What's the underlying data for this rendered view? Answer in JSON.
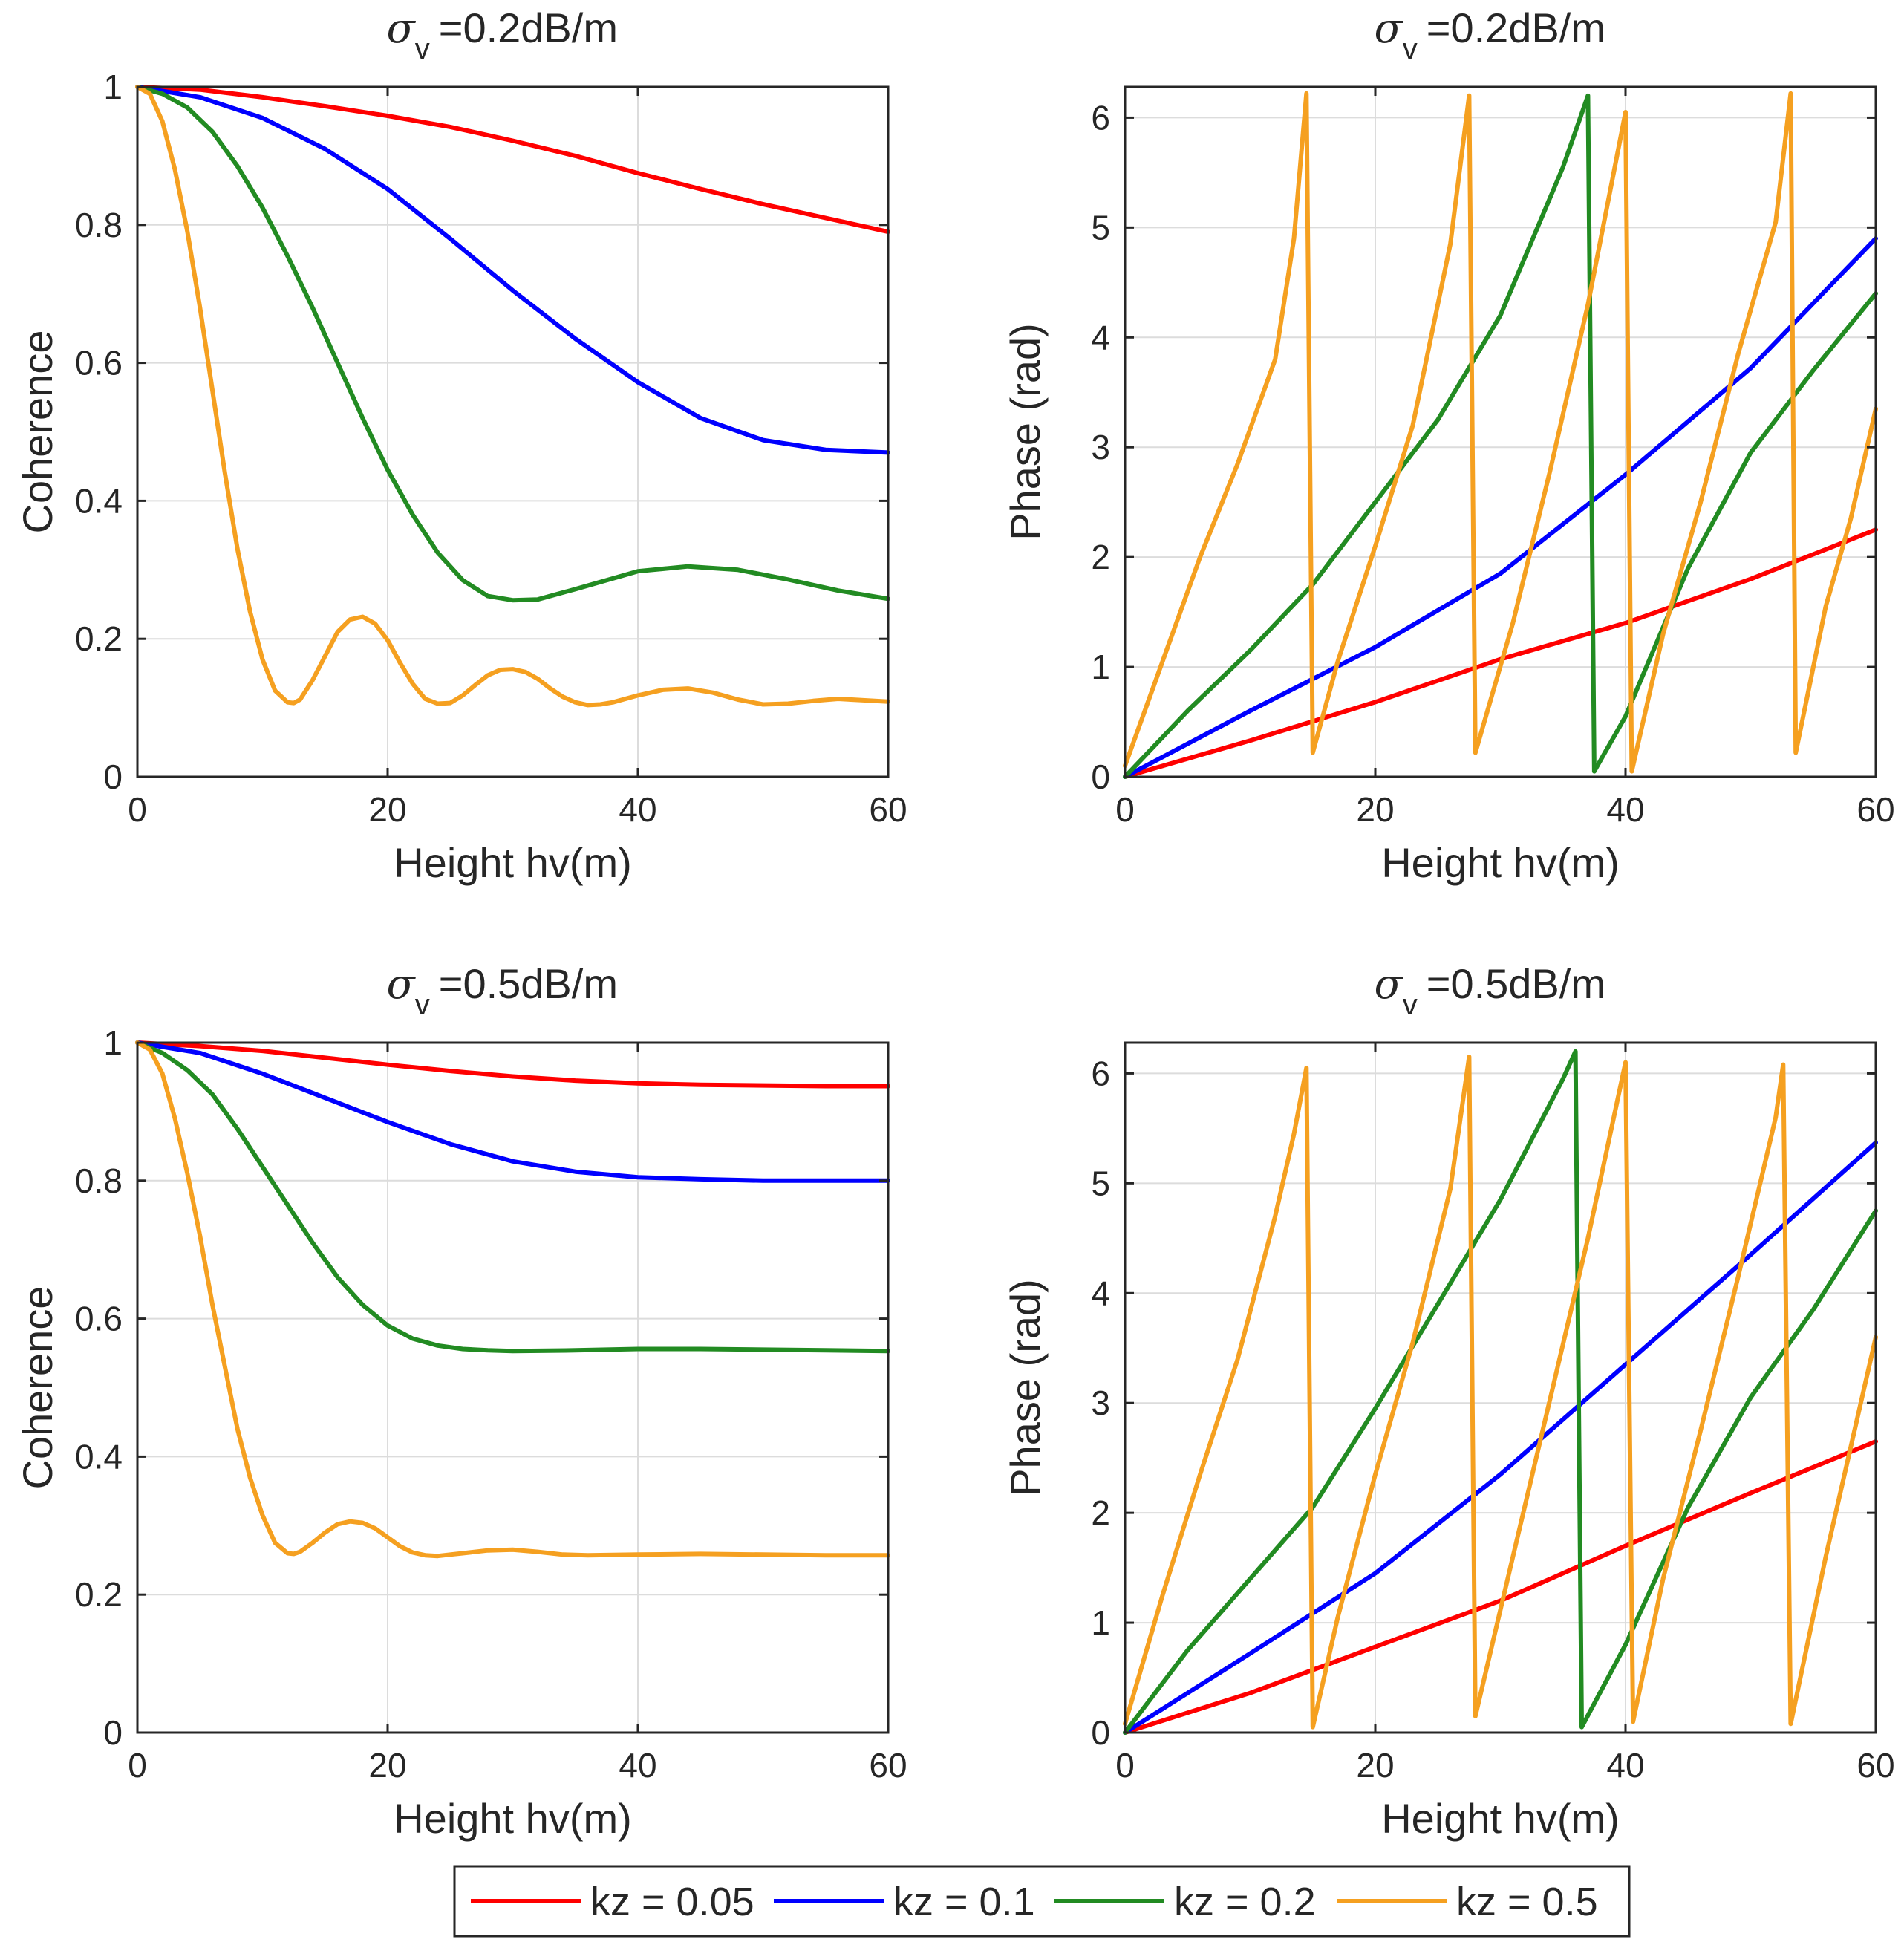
{
  "legend": [
    {
      "label": "kz = 0.05",
      "color": "#ff0000"
    },
    {
      "label": "kz = 0.1",
      "color": "#0000ff"
    },
    {
      "label": "kz = 0.2",
      "color": "#228b22"
    },
    {
      "label": "kz = 0.5",
      "color": "#f5a020"
    }
  ],
  "chart_data": [
    {
      "type": "line",
      "id": "coh_02",
      "title": {
        "symbol": "σ",
        "subscript": "v",
        "text": "=0.2dB/m"
      },
      "xlabel": "Height hv(m)",
      "ylabel": "Coherence",
      "xlim": [
        0,
        60
      ],
      "ylim": [
        0,
        1
      ],
      "xticks": [
        0,
        20,
        40,
        60
      ],
      "yticks": [
        0,
        0.2,
        0.4,
        0.6,
        0.8,
        1
      ],
      "ytick_labels": [
        "0",
        "0.2",
        "0.4",
        "0.6",
        "0.8",
        "1"
      ],
      "grid": true,
      "series": [
        {
          "name": "kz = 0.05",
          "x": [
            0,
            5,
            10,
            15,
            20,
            25,
            30,
            35,
            40,
            45,
            50,
            55,
            60
          ],
          "y": [
            1,
            0.996,
            0.985,
            0.972,
            0.958,
            0.942,
            0.922,
            0.9,
            0.875,
            0.852,
            0.83,
            0.81,
            0.79
          ]
        },
        {
          "name": "kz = 0.1",
          "x": [
            0,
            5,
            10,
            15,
            20,
            25,
            30,
            35,
            40,
            45,
            50,
            55,
            60
          ],
          "y": [
            1,
            0.985,
            0.955,
            0.91,
            0.852,
            0.78,
            0.705,
            0.635,
            0.572,
            0.52,
            0.488,
            0.474,
            0.47
          ]
        },
        {
          "name": "kz = 0.2",
          "x": [
            0,
            2,
            4,
            6,
            8,
            10,
            12,
            14,
            16,
            18,
            20,
            22,
            24,
            26,
            28,
            30,
            32,
            35,
            40,
            44,
            48,
            52,
            56,
            60
          ],
          "y": [
            1,
            0.99,
            0.97,
            0.935,
            0.885,
            0.825,
            0.755,
            0.68,
            0.6,
            0.52,
            0.445,
            0.38,
            0.325,
            0.285,
            0.262,
            0.256,
            0.257,
            0.272,
            0.298,
            0.305,
            0.3,
            0.286,
            0.27,
            0.258
          ]
        },
        {
          "name": "kz = 0.5",
          "x": [
            0,
            1,
            2,
            3,
            4,
            5,
            6,
            7,
            8,
            9,
            10,
            11,
            12,
            12.5,
            13,
            14,
            15,
            16,
            17,
            18,
            19,
            20,
            21,
            22,
            23,
            24,
            25,
            26,
            27,
            28,
            29,
            30,
            31,
            32,
            33,
            34,
            35,
            36,
            37,
            38,
            40,
            42,
            44,
            46,
            48,
            50,
            52,
            54,
            56,
            58,
            60
          ],
          "y": [
            1,
            0.99,
            0.95,
            0.88,
            0.79,
            0.68,
            0.56,
            0.44,
            0.33,
            0.24,
            0.17,
            0.125,
            0.108,
            0.107,
            0.112,
            0.14,
            0.175,
            0.21,
            0.228,
            0.232,
            0.222,
            0.198,
            0.165,
            0.135,
            0.113,
            0.106,
            0.107,
            0.118,
            0.133,
            0.147,
            0.155,
            0.156,
            0.152,
            0.142,
            0.128,
            0.116,
            0.108,
            0.104,
            0.105,
            0.108,
            0.118,
            0.126,
            0.128,
            0.122,
            0.112,
            0.105,
            0.106,
            0.11,
            0.113,
            0.111,
            0.109
          ]
        }
      ]
    },
    {
      "type": "line",
      "id": "phase_02",
      "title": {
        "symbol": "σ",
        "subscript": "v",
        "text": "=0.2dB/m"
      },
      "xlabel": "Height hv(m)",
      "ylabel": "Phase (rad)",
      "xlim": [
        0,
        60
      ],
      "ylim": [
        0,
        6.28
      ],
      "xticks": [
        0,
        20,
        40,
        60
      ],
      "yticks": [
        0,
        1,
        2,
        3,
        4,
        5,
        6
      ],
      "ytick_labels": [
        "0",
        "1",
        "2",
        "3",
        "4",
        "5",
        "6"
      ],
      "grid": true,
      "series": [
        {
          "name": "kz = 0.05",
          "x": [
            0,
            10,
            20,
            30,
            40,
            50,
            60
          ],
          "y": [
            0,
            0.33,
            0.68,
            1.07,
            1.4,
            1.8,
            2.25
          ]
        },
        {
          "name": "kz = 0.1",
          "x": [
            0,
            10,
            20,
            30,
            40,
            50,
            60
          ],
          "y": [
            0,
            0.6,
            1.18,
            1.85,
            2.75,
            3.72,
            4.9
          ]
        },
        {
          "name": "kz = 0.2",
          "x": [
            0,
            5,
            10,
            15,
            20,
            25,
            30,
            35,
            37,
            37.5,
            40,
            45,
            50,
            55,
            60
          ],
          "y": [
            0,
            0.6,
            1.15,
            1.75,
            2.5,
            3.25,
            4.2,
            5.55,
            6.2,
            0.05,
            0.55,
            1.9,
            2.95,
            3.7,
            4.4
          ]
        },
        {
          "name": "kz = 0.5",
          "x": [
            0,
            3,
            6,
            9,
            12,
            13.5,
            14.5,
            15,
            17,
            20,
            23,
            26,
            27.5,
            28,
            31,
            34,
            37,
            40,
            40.5,
            43,
            46,
            49,
            52,
            53.2,
            53.6,
            56,
            58,
            60
          ],
          "y": [
            0.1,
            1.05,
            2,
            2.85,
            3.8,
            4.9,
            6.22,
            0.22,
            1.05,
            2.1,
            3.2,
            4.85,
            6.2,
            0.22,
            1.4,
            2.8,
            4.3,
            6.05,
            0.05,
            1.3,
            2.5,
            3.85,
            5.05,
            6.22,
            0.22,
            1.55,
            2.35,
            3.35
          ]
        }
      ]
    },
    {
      "type": "line",
      "id": "coh_05",
      "title": {
        "symbol": "σ",
        "subscript": "v",
        "text": "=0.5dB/m"
      },
      "xlabel": "Height hv(m)",
      "ylabel": "Coherence",
      "xlim": [
        0,
        60
      ],
      "ylim": [
        0,
        1
      ],
      "xticks": [
        0,
        20,
        40,
        60
      ],
      "yticks": [
        0,
        0.2,
        0.4,
        0.6,
        0.8,
        1
      ],
      "ytick_labels": [
        "0",
        "0.2",
        "0.4",
        "0.6",
        "0.8",
        "1"
      ],
      "grid": true,
      "series": [
        {
          "name": "kz = 0.05",
          "x": [
            0,
            5,
            10,
            15,
            20,
            25,
            30,
            35,
            40,
            45,
            50,
            55,
            60
          ],
          "y": [
            1,
            0.995,
            0.988,
            0.978,
            0.968,
            0.959,
            0.951,
            0.945,
            0.941,
            0.939,
            0.938,
            0.937,
            0.937
          ]
        },
        {
          "name": "kz = 0.1",
          "x": [
            0,
            5,
            10,
            15,
            20,
            25,
            30,
            35,
            40,
            45,
            50,
            55,
            60
          ],
          "y": [
            1,
            0.985,
            0.955,
            0.92,
            0.885,
            0.853,
            0.828,
            0.813,
            0.805,
            0.802,
            0.8,
            0.8,
            0.8
          ]
        },
        {
          "name": "kz = 0.2",
          "x": [
            0,
            2,
            4,
            6,
            8,
            10,
            12,
            14,
            16,
            18,
            20,
            22,
            24,
            26,
            28,
            30,
            35,
            40,
            45,
            50,
            55,
            60
          ],
          "y": [
            1,
            0.985,
            0.96,
            0.925,
            0.875,
            0.82,
            0.765,
            0.71,
            0.66,
            0.62,
            0.59,
            0.571,
            0.561,
            0.556,
            0.554,
            0.553,
            0.554,
            0.556,
            0.556,
            0.555,
            0.554,
            0.553
          ]
        },
        {
          "name": "kz = 0.5",
          "x": [
            0,
            1,
            2,
            3,
            4,
            5,
            6,
            7,
            8,
            9,
            10,
            11,
            12,
            12.5,
            13,
            14,
            15,
            16,
            17,
            18,
            19,
            20,
            21,
            22,
            23,
            24,
            25,
            26,
            28,
            30,
            32,
            34,
            36,
            40,
            45,
            50,
            55,
            60
          ],
          "y": [
            1,
            0.99,
            0.955,
            0.89,
            0.81,
            0.72,
            0.62,
            0.53,
            0.44,
            0.37,
            0.315,
            0.275,
            0.26,
            0.259,
            0.262,
            0.275,
            0.29,
            0.302,
            0.306,
            0.304,
            0.296,
            0.283,
            0.27,
            0.261,
            0.257,
            0.256,
            0.258,
            0.26,
            0.264,
            0.265,
            0.262,
            0.258,
            0.257,
            0.258,
            0.259,
            0.258,
            0.257,
            0.257
          ]
        }
      ]
    },
    {
      "type": "line",
      "id": "phase_05",
      "title": {
        "symbol": "σ",
        "subscript": "v",
        "text": "=0.5dB/m"
      },
      "xlabel": "Height hv(m)",
      "ylabel": "Phase (rad)",
      "xlim": [
        0,
        60
      ],
      "ylim": [
        0,
        6.28
      ],
      "xticks": [
        0,
        20,
        40,
        60
      ],
      "yticks": [
        0,
        1,
        2,
        3,
        4,
        5,
        6
      ],
      "ytick_labels": [
        "0",
        "1",
        "2",
        "3",
        "4",
        "5",
        "6"
      ],
      "grid": true,
      "series": [
        {
          "name": "kz = 0.05",
          "x": [
            0,
            10,
            20,
            30,
            40,
            50,
            60
          ],
          "y": [
            0,
            0.36,
            0.78,
            1.2,
            1.7,
            2.18,
            2.65
          ]
        },
        {
          "name": "kz = 0.1",
          "x": [
            0,
            10,
            20,
            30,
            40,
            50,
            60
          ],
          "y": [
            0,
            0.72,
            1.45,
            2.35,
            3.35,
            4.35,
            5.37
          ]
        },
        {
          "name": "kz = 0.2",
          "x": [
            0,
            5,
            10,
            15,
            20,
            25,
            30,
            35,
            36,
            36.5,
            40,
            45,
            50,
            55,
            60
          ],
          "y": [
            0,
            0.75,
            1.4,
            2.05,
            2.95,
            3.9,
            4.85,
            5.95,
            6.2,
            0.05,
            0.8,
            2.05,
            3.05,
            3.85,
            4.75
          ]
        },
        {
          "name": "kz = 0.5",
          "x": [
            0,
            3,
            6,
            9,
            12,
            13.5,
            14.5,
            15,
            17,
            20,
            23,
            26,
            27.5,
            28,
            31,
            34,
            37,
            40,
            40.6,
            43,
            46,
            49,
            52,
            52.6,
            53.2,
            56,
            58,
            60
          ],
          "y": [
            0.08,
            1.25,
            2.35,
            3.4,
            4.7,
            5.45,
            6.05,
            0.05,
            1.05,
            2.35,
            3.55,
            4.95,
            6.15,
            0.15,
            1.6,
            3.05,
            4.5,
            6.1,
            0.1,
            1.4,
            2.75,
            4.15,
            5.6,
            6.08,
            0.08,
            1.6,
            2.6,
            3.6
          ]
        }
      ]
    }
  ]
}
